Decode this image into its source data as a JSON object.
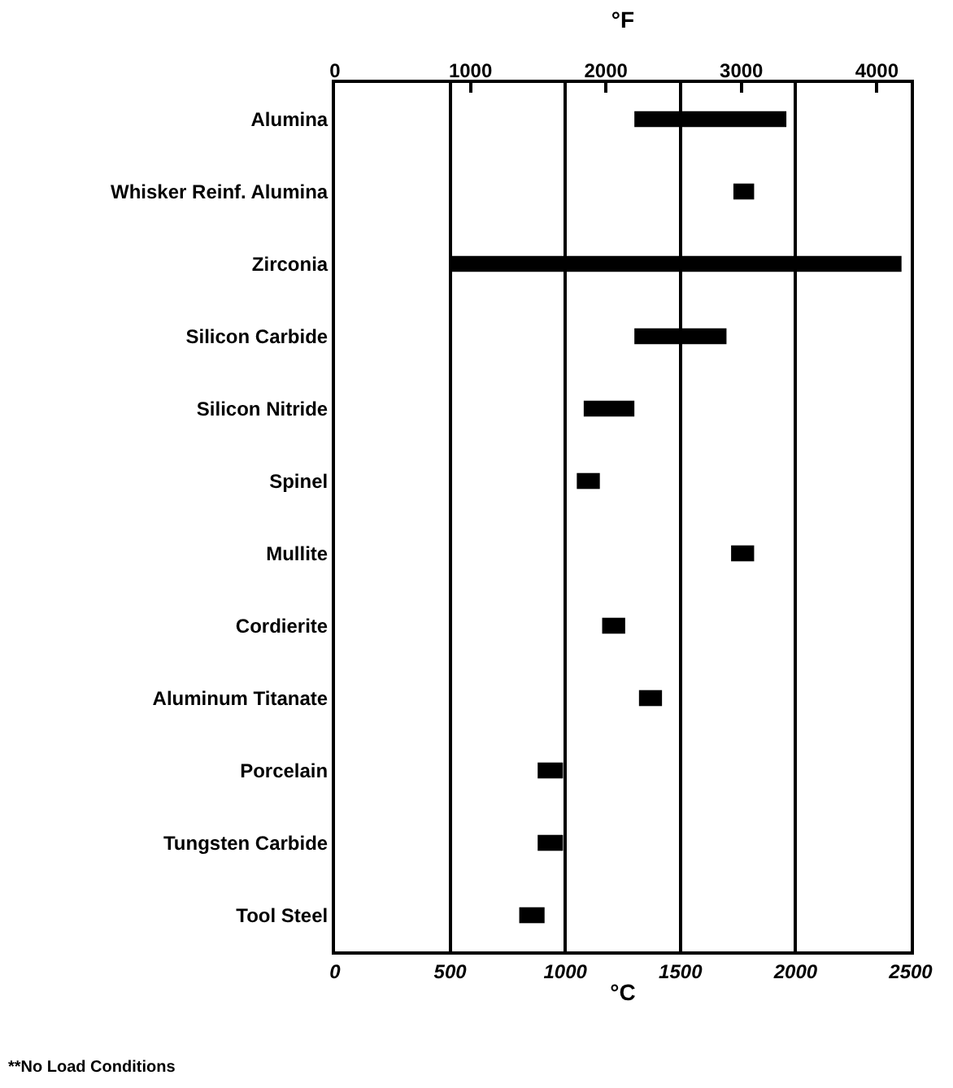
{
  "chart_data": {
    "type": "bar",
    "orientation": "horizontal",
    "categories": [
      "Alumina",
      "Whisker Reinf. Alumina",
      "Zirconia",
      "Silicon Carbide",
      "Silicon Nitride",
      "Spinel",
      "Mullite",
      "Cordierite",
      "Aluminum Titanate",
      "Porcelain",
      "Tungsten Carbide",
      "Tool Steel"
    ],
    "base": [
      1300,
      1730,
      500,
      1300,
      1080,
      1050,
      1720,
      1160,
      1320,
      880,
      880,
      800
    ],
    "values": [
      660,
      90,
      1960,
      400,
      220,
      100,
      100,
      100,
      100,
      110,
      110,
      110
    ],
    "color": "#000000",
    "xlabel": "°C",
    "x2label": "°F",
    "xlim": [
      0,
      2500
    ],
    "xticks": [
      0,
      500,
      1000,
      1500,
      2000,
      2500
    ],
    "x2lim": [
      0,
      4250
    ],
    "x2ticks": [
      0,
      1000,
      2000,
      3000,
      4000
    ],
    "grid": "x",
    "annotations": [
      "**No Load Conditions"
    ]
  }
}
